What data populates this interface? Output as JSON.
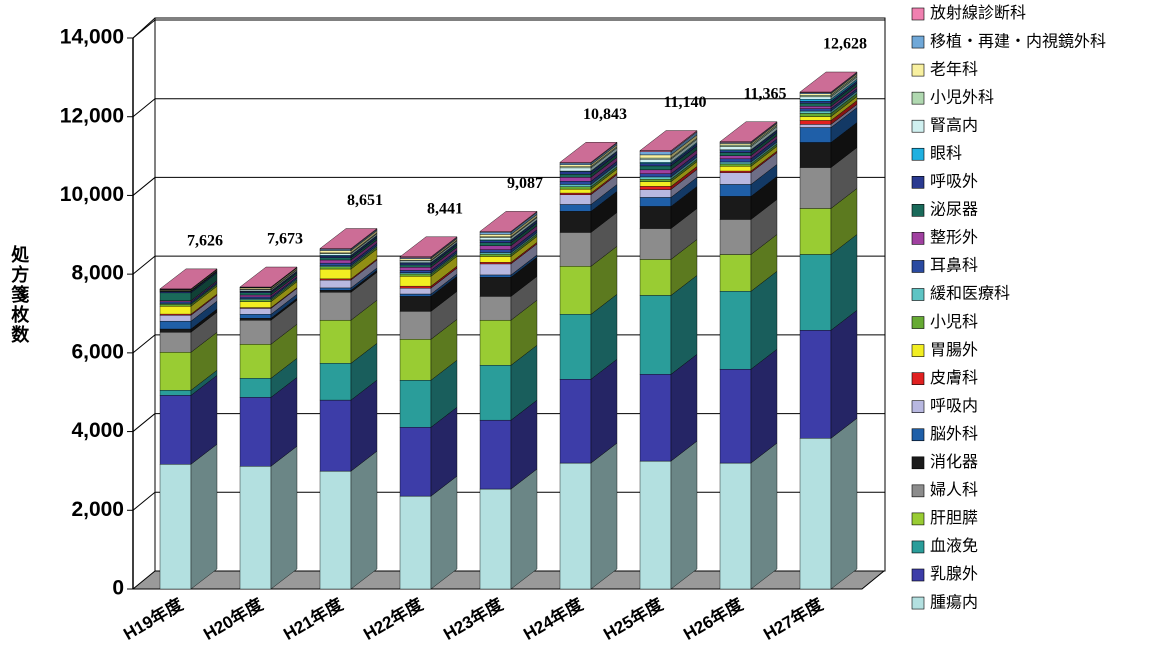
{
  "chart_data": {
    "type": "bar3d_stacked",
    "y_label": "処方箋枚数",
    "categories": [
      "H19年度",
      "H20年度",
      "H21年度",
      "H22年度",
      "H23年度",
      "H24年度",
      "H25年度",
      "H26年度",
      "H27年度"
    ],
    "series": [
      {
        "name": "腫瘍内",
        "color": "#b3e0e0",
        "values": [
          3170,
          3120,
          2995,
          2360,
          2540,
          3200,
          3250,
          3200,
          3830
        ]
      },
      {
        "name": "乳腺外",
        "color": "#3d3da8",
        "values": [
          1750,
          1750,
          1805,
          1750,
          1750,
          2130,
          2205,
          2385,
          2745
        ]
      },
      {
        "name": "血液免",
        "color": "#2a9d9a",
        "values": [
          130,
          485,
          935,
          1195,
          1395,
          1650,
          2005,
          1980,
          1925
        ]
      },
      {
        "name": "肝胆膵",
        "color": "#99cc33",
        "values": [
          965,
          865,
          1095,
          1040,
          1145,
          1220,
          915,
          935,
          1170
        ]
      },
      {
        "name": "婦人科",
        "color": "#8c8c8c",
        "values": [
          510,
          610,
          710,
          710,
          605,
          860,
          785,
          890,
          1040
        ]
      },
      {
        "name": "消化器",
        "color": "#1a1a1a",
        "values": [
          80,
          50,
          50,
          380,
          485,
          535,
          560,
          585,
          635
        ]
      },
      {
        "name": "脳外科",
        "color": "#1f5fa8",
        "values": [
          200,
          100,
          60,
          60,
          60,
          175,
          230,
          305,
          380
        ]
      },
      {
        "name": "呼吸内",
        "color": "#b8b8e0",
        "values": [
          150,
          150,
          200,
          150,
          280,
          250,
          200,
          300,
          80
        ]
      },
      {
        "name": "皮膚科",
        "color": "#e02020",
        "values": [
          30,
          20,
          30,
          50,
          40,
          40,
          80,
          40,
          100
        ]
      },
      {
        "name": "胃腸外",
        "color": "#f2ee22",
        "values": [
          200,
          150,
          250,
          250,
          150,
          100,
          120,
          120,
          100
        ]
      },
      {
        "name": "小児科",
        "color": "#66aa33",
        "values": [
          50,
          50,
          60,
          60,
          60,
          60,
          60,
          60,
          80
        ]
      },
      {
        "name": "緩和医療科",
        "color": "#5ec4c4",
        "values": [
          20,
          30,
          30,
          30,
          40,
          60,
          60,
          50,
          60
        ]
      },
      {
        "name": "耳鼻科",
        "color": "#2a4aa0",
        "values": [
          40,
          40,
          60,
          60,
          70,
          80,
          80,
          80,
          60
        ]
      },
      {
        "name": "整形外",
        "color": "#a040a0",
        "values": [
          30,
          50,
          80,
          80,
          100,
          100,
          100,
          80,
          60
        ]
      },
      {
        "name": "泌尿器",
        "color": "#1a6a5a",
        "values": [
          200,
          60,
          60,
          60,
          80,
          80,
          100,
          80,
          80
        ]
      },
      {
        "name": "呼吸外",
        "color": "#2a3a90",
        "values": [
          30,
          30,
          40,
          40,
          50,
          60,
          60,
          50,
          50
        ]
      },
      {
        "name": "眼科",
        "color": "#20b0e0",
        "values": [
          10,
          10,
          20,
          20,
          20,
          20,
          30,
          20,
          50
        ]
      },
      {
        "name": "腎高内",
        "color": "#d0f0f0",
        "values": [
          10,
          30,
          40,
          40,
          60,
          80,
          80,
          80,
          60
        ]
      },
      {
        "name": "小児外科",
        "color": "#b0d8b0",
        "values": [
          10,
          20,
          20,
          20,
          20,
          30,
          30,
          40,
          40
        ]
      },
      {
        "name": "老年科",
        "color": "#f8f0a0",
        "values": [
          20,
          30,
          60,
          40,
          60,
          50,
          80,
          40,
          40
        ]
      },
      {
        "name": "移植・再建・内視鏡外科",
        "color": "#70a8d8",
        "values": [
          11,
          13,
          31,
          26,
          57,
          43,
          80,
          25,
          23
        ]
      },
      {
        "name": "放射線診断科",
        "color": "#f080b0",
        "values": [
          10,
          10,
          20,
          20,
          20,
          20,
          30,
          20,
          20
        ]
      }
    ],
    "totals": {
      "values": [
        7626,
        7673,
        8651,
        8441,
        9087,
        10843,
        11140,
        11365,
        12628
      ],
      "value_labels": [
        "7,626",
        "7,673",
        "8,651",
        "8,441",
        "9,087",
        "10,843",
        "11,140",
        "11,365",
        "12,628"
      ]
    },
    "ylim": [
      0,
      14000
    ],
    "yticks": [
      0,
      {
        "value": 2000,
        "label": "2,000"
      },
      {
        "value": 4000,
        "label": "4,000"
      },
      {
        "value": 6000,
        "label": "6,000"
      },
      {
        "value": 8000,
        "label": "8,000"
      },
      {
        "value": 10000,
        "label": "10,000"
      },
      {
        "value": 12000,
        "label": "12,000"
      },
      {
        "value": 14000,
        "label": "14,000"
      }
    ],
    "grid": true
  }
}
